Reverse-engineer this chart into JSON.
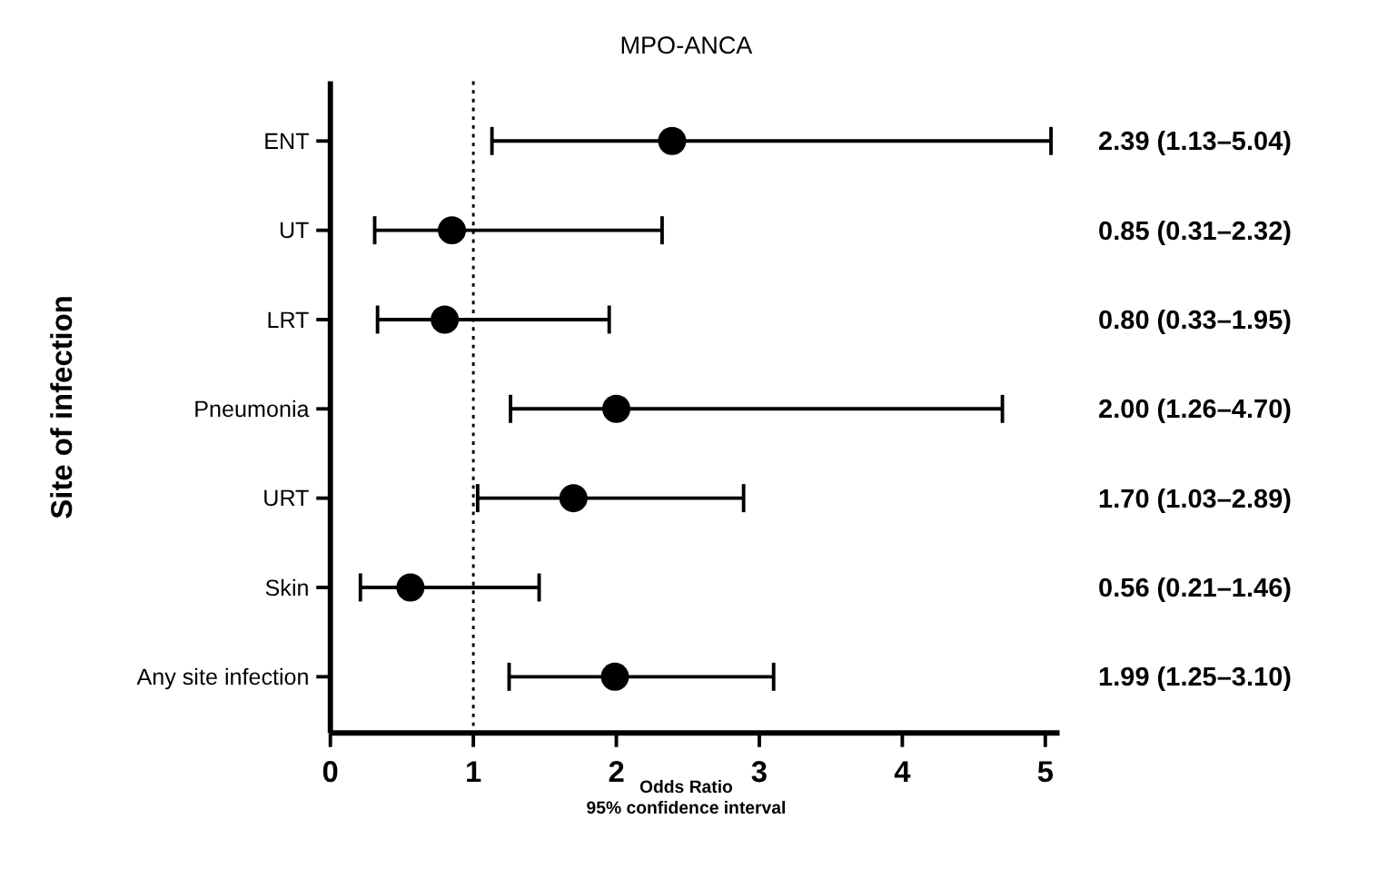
{
  "chart_data": {
    "type": "scatter",
    "orientation": "horizontal",
    "title": "MPO-ANCA",
    "xlabel": "Odds Ratio\n95% confidence interval",
    "ylabel": "Site of infection",
    "categories": [
      "ENT",
      "UT",
      "LRT",
      "Pneumonia",
      "URT",
      "Skin",
      "Any site infection"
    ],
    "values": [
      2.39,
      0.85,
      0.8,
      2.0,
      1.7,
      0.56,
      1.99
    ],
    "errors": [
      [
        1.13,
        5.04
      ],
      [
        0.31,
        2.32
      ],
      [
        0.33,
        1.95
      ],
      [
        1.26,
        4.7
      ],
      [
        1.03,
        2.89
      ],
      [
        0.21,
        1.46
      ],
      [
        1.25,
        3.1
      ]
    ],
    "value_labels": [
      "2.39 (1.13–5.04)",
      "0.85 (0.31–2.32)",
      "0.80 (0.33–1.95)",
      "2.00 (1.26–4.70)",
      "1.70 (1.03–2.89)",
      "0.56 (0.21–1.46)",
      "1.99 (1.25–3.10)"
    ],
    "color": "#000000",
    "marker": "circle",
    "xlim": [
      0,
      5.1
    ],
    "xticks": [
      0,
      1,
      2,
      3,
      4,
      5
    ],
    "grid": false,
    "ref_lines": [
      {
        "axis": "x",
        "value": 1,
        "line_style": "dotted"
      }
    ]
  }
}
